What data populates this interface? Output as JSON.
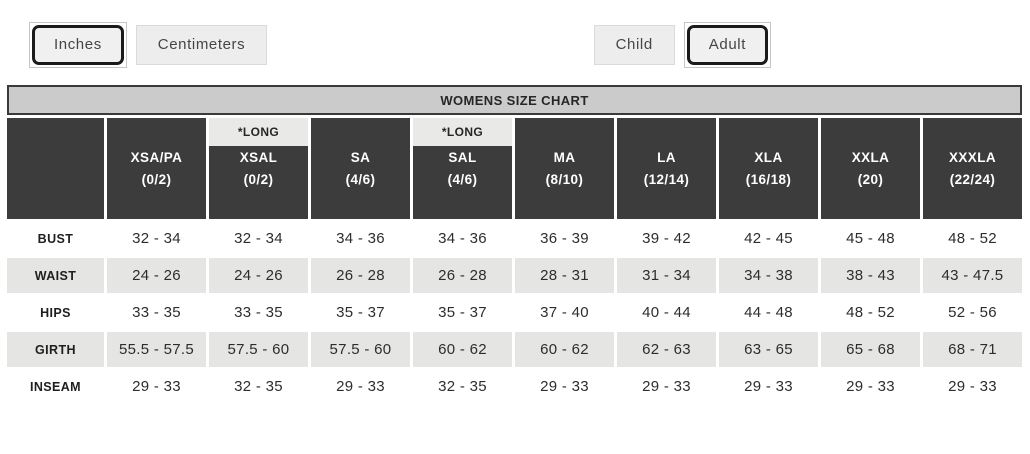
{
  "toolbar": {
    "unit_buttons": [
      {
        "label": "Inches",
        "selected": true
      },
      {
        "label": "Centimeters",
        "selected": false
      }
    ],
    "age_buttons": [
      {
        "label": "Child",
        "selected": false
      },
      {
        "label": "Adult",
        "selected": true
      }
    ]
  },
  "size_chart": {
    "title": "WOMENS SIZE CHART",
    "long_label": "*LONG",
    "columns": [
      {
        "name": "XSA/PA",
        "size": "(0/2)",
        "long": false
      },
      {
        "name": "XSAL",
        "size": "(0/2)",
        "long": true
      },
      {
        "name": "SA",
        "size": "(4/6)",
        "long": false
      },
      {
        "name": "SAL",
        "size": "(4/6)",
        "long": true
      },
      {
        "name": "MA",
        "size": "(8/10)",
        "long": false
      },
      {
        "name": "LA",
        "size": "(12/14)",
        "long": false
      },
      {
        "name": "XLA",
        "size": "(16/18)",
        "long": false
      },
      {
        "name": "XXLA",
        "size": "(20)",
        "long": false
      },
      {
        "name": "XXXLA",
        "size": "(22/24)",
        "long": false
      }
    ],
    "rows": [
      {
        "label": "BUST",
        "values": [
          "32 - 34",
          "32 - 34",
          "34 - 36",
          "34 - 36",
          "36 - 39",
          "39 - 42",
          "42 - 45",
          "45 - 48",
          "48 - 52"
        ]
      },
      {
        "label": "WAIST",
        "values": [
          "24 - 26",
          "24 - 26",
          "26 - 28",
          "26 - 28",
          "28 - 31",
          "31 - 34",
          "34 - 38",
          "38 - 43",
          "43 - 47.5"
        ]
      },
      {
        "label": "HIPS",
        "values": [
          "33 - 35",
          "33 - 35",
          "35 - 37",
          "35 - 37",
          "37 - 40",
          "40 - 44",
          "44 - 48",
          "48 - 52",
          "52 - 56"
        ]
      },
      {
        "label": "GIRTH",
        "values": [
          "55.5 - 57.5",
          "57.5 - 60",
          "57.5 - 60",
          "60 - 62",
          "60 - 62",
          "62 - 63",
          "63 - 65",
          "65 - 68",
          "68 - 71"
        ]
      },
      {
        "label": "INSEAM",
        "values": [
          "29 - 33",
          "32 - 35",
          "29 - 33",
          "32 - 35",
          "29 - 33",
          "29 - 33",
          "29 - 33",
          "29 - 33",
          "29 - 33"
        ]
      }
    ]
  }
}
